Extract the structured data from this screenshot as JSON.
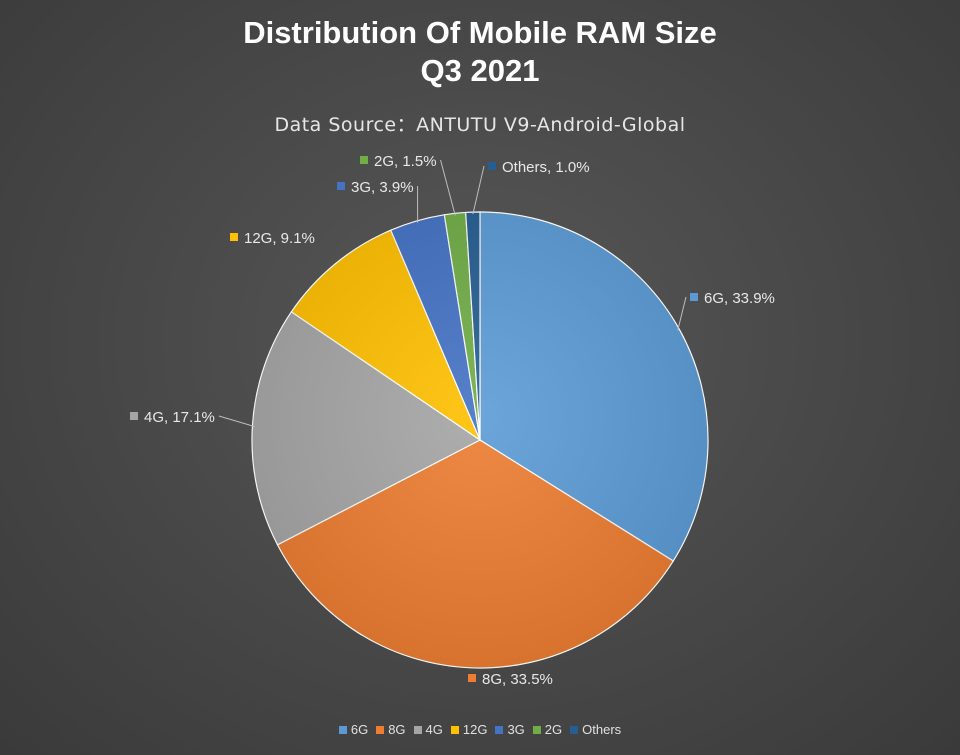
{
  "chart_data": {
    "type": "pie",
    "title_lines": [
      "Distribution Of Mobile RAM Size",
      "Q3 2021"
    ],
    "subtitle": "Data Source：ANTUTU V9-Android-Global",
    "start_angle_deg": 0,
    "direction": "clockwise",
    "legend_position": "bottom",
    "slices": [
      {
        "label": "6G",
        "value": 33.9,
        "value_text": "33.9%",
        "color": "#5b9bd5"
      },
      {
        "label": "8G",
        "value": 33.5,
        "value_text": "33.5%",
        "color": "#ed7d31"
      },
      {
        "label": "4G",
        "value": 17.1,
        "value_text": "17.1%",
        "color": "#a5a5a5"
      },
      {
        "label": "12G",
        "value": 9.1,
        "value_text": "9.1%",
        "color": "#ffc000"
      },
      {
        "label": "3G",
        "value": 3.9,
        "value_text": "3.9%",
        "color": "#4472c4"
      },
      {
        "label": "2G",
        "value": 1.5,
        "value_text": "1.5%",
        "color": "#70ad47"
      },
      {
        "label": "Others",
        "value": 1.0,
        "value_text": "1.0%",
        "color": "#255e91"
      }
    ]
  }
}
